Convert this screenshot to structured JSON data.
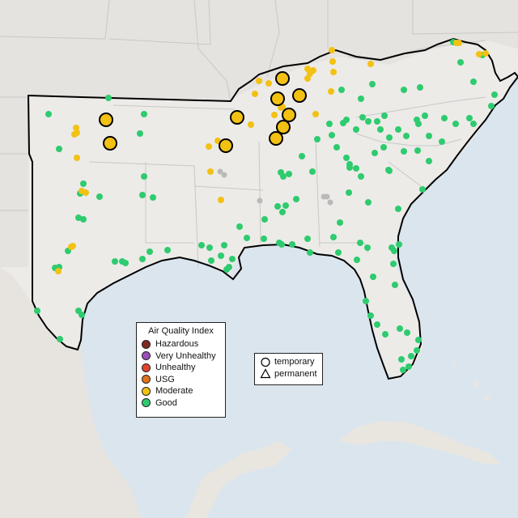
{
  "legend_aqi": {
    "title": "Air Quality Index",
    "items": [
      {
        "label": "Hazardous",
        "color": "#7e2a20"
      },
      {
        "label": "Very Unhealthy",
        "color": "#9b4fb8"
      },
      {
        "label": "Unhealthy",
        "color": "#e2432c"
      },
      {
        "label": "USG",
        "color": "#e0731c"
      },
      {
        "label": "Moderate",
        "color": "#f2c113"
      },
      {
        "label": "Good",
        "color": "#2ecb6f"
      }
    ]
  },
  "legend_monitor": {
    "items": [
      {
        "label": "temporary",
        "icon": "circle-icon"
      },
      {
        "label": "permanent",
        "icon": "triangle-icon"
      }
    ]
  },
  "colors": {
    "good": "#2ecb6f",
    "moderate": "#f2c113",
    "no_data": "#b9b9b9",
    "land": "#ecebe8",
    "water": "#dbe5ee",
    "border": "#000000"
  },
  "monitors": {
    "temporary_moderate_count": 12,
    "aqi_categories_present": [
      "Moderate",
      "Good"
    ]
  }
}
